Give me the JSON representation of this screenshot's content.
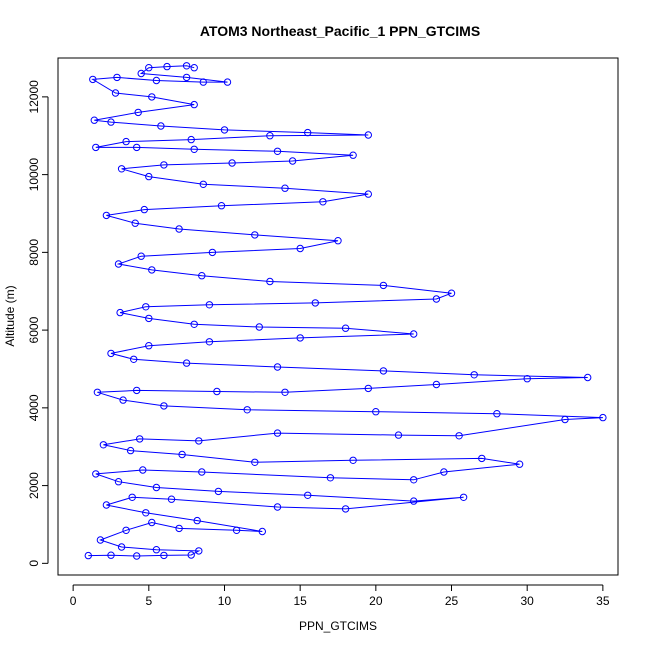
{
  "chart_data": {
    "type": "scatter",
    "title": "ATOM3 Northeast_Pacific_1 PPN_GTCIMS",
    "xlabel": "PPN_GTCIMS",
    "ylabel": "Altitude (m)",
    "xlim": [
      -1,
      36
    ],
    "ylim": [
      -300,
      13000
    ],
    "x_ticks": [
      0,
      5,
      10,
      15,
      20,
      25,
      30,
      35
    ],
    "y_ticks": [
      0,
      2000,
      4000,
      6000,
      8000,
      10000,
      12000
    ],
    "x_tick_labels": [
      "0",
      "5",
      "10",
      "15",
      "20",
      "25",
      "30",
      "35"
    ],
    "y_tick_labels": [
      "0",
      "2000",
      "4000",
      "6000",
      "8000",
      "10000",
      "12000"
    ],
    "marker": "open-circle",
    "connect_points": true,
    "color": "#0000ff",
    "grid": false,
    "legend": "none",
    "series": [
      {
        "values": [
          [
            1.0,
            200
          ],
          [
            2.5,
            210
          ],
          [
            4.2,
            190
          ],
          [
            6.0,
            205
          ],
          [
            7.8,
            215
          ],
          [
            8.3,
            320
          ],
          [
            5.5,
            350
          ],
          [
            3.2,
            420
          ],
          [
            1.8,
            600
          ],
          [
            3.5,
            850
          ],
          [
            5.2,
            1050
          ],
          [
            7.0,
            900
          ],
          [
            10.8,
            850
          ],
          [
            12.5,
            820
          ],
          [
            8.2,
            1100
          ],
          [
            4.8,
            1300
          ],
          [
            2.2,
            1500
          ],
          [
            3.9,
            1700
          ],
          [
            6.5,
            1650
          ],
          [
            13.5,
            1450
          ],
          [
            18.0,
            1400
          ],
          [
            25.8,
            1700
          ],
          [
            22.5,
            1600
          ],
          [
            15.5,
            1750
          ],
          [
            9.6,
            1850
          ],
          [
            5.5,
            1950
          ],
          [
            3.0,
            2100
          ],
          [
            1.5,
            2300
          ],
          [
            4.6,
            2400
          ],
          [
            8.5,
            2350
          ],
          [
            17.0,
            2200
          ],
          [
            22.5,
            2150
          ],
          [
            24.5,
            2350
          ],
          [
            29.5,
            2550
          ],
          [
            27.0,
            2700
          ],
          [
            18.5,
            2650
          ],
          [
            12.0,
            2600
          ],
          [
            7.2,
            2800
          ],
          [
            3.8,
            2900
          ],
          [
            2.0,
            3050
          ],
          [
            4.4,
            3200
          ],
          [
            8.3,
            3150
          ],
          [
            13.5,
            3350
          ],
          [
            21.5,
            3300
          ],
          [
            25.5,
            3280
          ],
          [
            32.5,
            3700
          ],
          [
            35.0,
            3750
          ],
          [
            28.0,
            3850
          ],
          [
            20.0,
            3900
          ],
          [
            11.5,
            3950
          ],
          [
            6.0,
            4050
          ],
          [
            3.3,
            4200
          ],
          [
            1.6,
            4400
          ],
          [
            4.2,
            4450
          ],
          [
            9.5,
            4420
          ],
          [
            14.0,
            4400
          ],
          [
            19.5,
            4500
          ],
          [
            24.0,
            4600
          ],
          [
            30.0,
            4750
          ],
          [
            34.0,
            4780
          ],
          [
            26.5,
            4850
          ],
          [
            20.5,
            4950
          ],
          [
            13.5,
            5050
          ],
          [
            7.5,
            5150
          ],
          [
            4.0,
            5250
          ],
          [
            2.5,
            5400
          ],
          [
            5.0,
            5600
          ],
          [
            9.0,
            5700
          ],
          [
            15.0,
            5800
          ],
          [
            22.5,
            5900
          ],
          [
            18.0,
            6050
          ],
          [
            12.3,
            6080
          ],
          [
            8.0,
            6150
          ],
          [
            5.0,
            6300
          ],
          [
            3.1,
            6450
          ],
          [
            4.8,
            6600
          ],
          [
            9.0,
            6650
          ],
          [
            16.0,
            6700
          ],
          [
            24.0,
            6800
          ],
          [
            25.0,
            6950
          ],
          [
            20.5,
            7150
          ],
          [
            13.0,
            7250
          ],
          [
            8.5,
            7400
          ],
          [
            5.2,
            7550
          ],
          [
            3.0,
            7700
          ],
          [
            4.5,
            7900
          ],
          [
            9.2,
            8000
          ],
          [
            15.0,
            8100
          ],
          [
            17.5,
            8300
          ],
          [
            12.0,
            8450
          ],
          [
            7.0,
            8600
          ],
          [
            4.1,
            8750
          ],
          [
            2.2,
            8950
          ],
          [
            4.7,
            9100
          ],
          [
            9.8,
            9200
          ],
          [
            16.5,
            9300
          ],
          [
            19.5,
            9500
          ],
          [
            14.0,
            9650
          ],
          [
            8.6,
            9750
          ],
          [
            5.0,
            9950
          ],
          [
            3.2,
            10150
          ],
          [
            6.0,
            10250
          ],
          [
            10.5,
            10300
          ],
          [
            14.5,
            10350
          ],
          [
            18.5,
            10500
          ],
          [
            13.5,
            10600
          ],
          [
            8.0,
            10650
          ],
          [
            4.2,
            10700
          ],
          [
            1.5,
            10700
          ],
          [
            3.5,
            10850
          ],
          [
            7.8,
            10900
          ],
          [
            13.0,
            11000
          ],
          [
            19.5,
            11020
          ],
          [
            15.5,
            11080
          ],
          [
            10.0,
            11150
          ],
          [
            5.8,
            11250
          ],
          [
            2.5,
            11350
          ],
          [
            1.4,
            11400
          ],
          [
            4.3,
            11600
          ],
          [
            8.0,
            11800
          ],
          [
            5.2,
            12000
          ],
          [
            2.8,
            12100
          ],
          [
            1.3,
            12450
          ],
          [
            2.9,
            12500
          ],
          [
            5.5,
            12420
          ],
          [
            8.6,
            12380
          ],
          [
            10.2,
            12380
          ],
          [
            7.5,
            12500
          ],
          [
            4.5,
            12600
          ],
          [
            5.0,
            12750
          ],
          [
            6.2,
            12780
          ],
          [
            7.5,
            12800
          ],
          [
            8.0,
            12750
          ]
        ]
      }
    ]
  }
}
